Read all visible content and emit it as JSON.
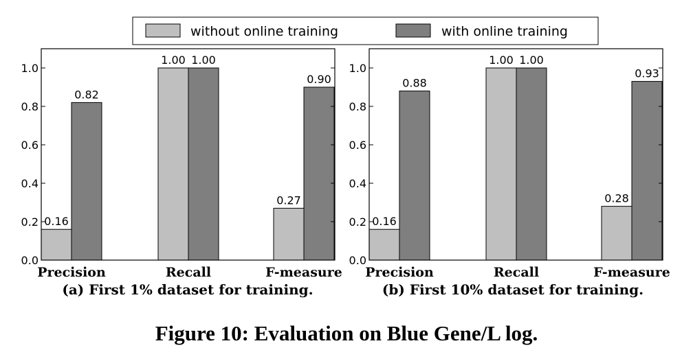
{
  "legend": {
    "items": [
      {
        "label": "without online training",
        "color": "#bfbfbf"
      },
      {
        "label": "with online training",
        "color": "#7f7f7f"
      }
    ]
  },
  "chart_data": [
    {
      "type": "bar",
      "caption": "(a) First 1% dataset for training.",
      "categories": [
        "Precision",
        "Recall",
        "F-measure"
      ],
      "series": [
        {
          "name": "without online training",
          "values": [
            0.16,
            1.0,
            0.27
          ],
          "labels": [
            "0.16",
            "1.00",
            "0.27"
          ],
          "color": "#bfbfbf"
        },
        {
          "name": "with online training",
          "values": [
            0.82,
            1.0,
            0.9
          ],
          "labels": [
            "0.82",
            "1.00",
            "0.90"
          ],
          "color": "#7f7f7f"
        }
      ],
      "ylim": [
        0,
        1.1
      ],
      "yticks": [
        "0.0",
        "0.2",
        "0.4",
        "0.6",
        "0.8",
        "1.0"
      ],
      "grid": false,
      "legend_position": "top"
    },
    {
      "type": "bar",
      "caption": "(b) First 10% dataset for training.",
      "categories": [
        "Precision",
        "Recall",
        "F-measure"
      ],
      "series": [
        {
          "name": "without online training",
          "values": [
            0.16,
            1.0,
            0.28
          ],
          "labels": [
            "0.16",
            "1.00",
            "0.28"
          ],
          "color": "#bfbfbf"
        },
        {
          "name": "with online training",
          "values": [
            0.88,
            1.0,
            0.93
          ],
          "labels": [
            "0.88",
            "1.00",
            "0.93"
          ],
          "color": "#7f7f7f"
        }
      ],
      "ylim": [
        0,
        1.1
      ],
      "yticks": [
        "0.0",
        "0.2",
        "0.4",
        "0.6",
        "0.8",
        "1.0"
      ],
      "grid": false,
      "legend_position": "top"
    }
  ],
  "figure_caption": "Figure 10: Evaluation on Blue Gene/L log."
}
